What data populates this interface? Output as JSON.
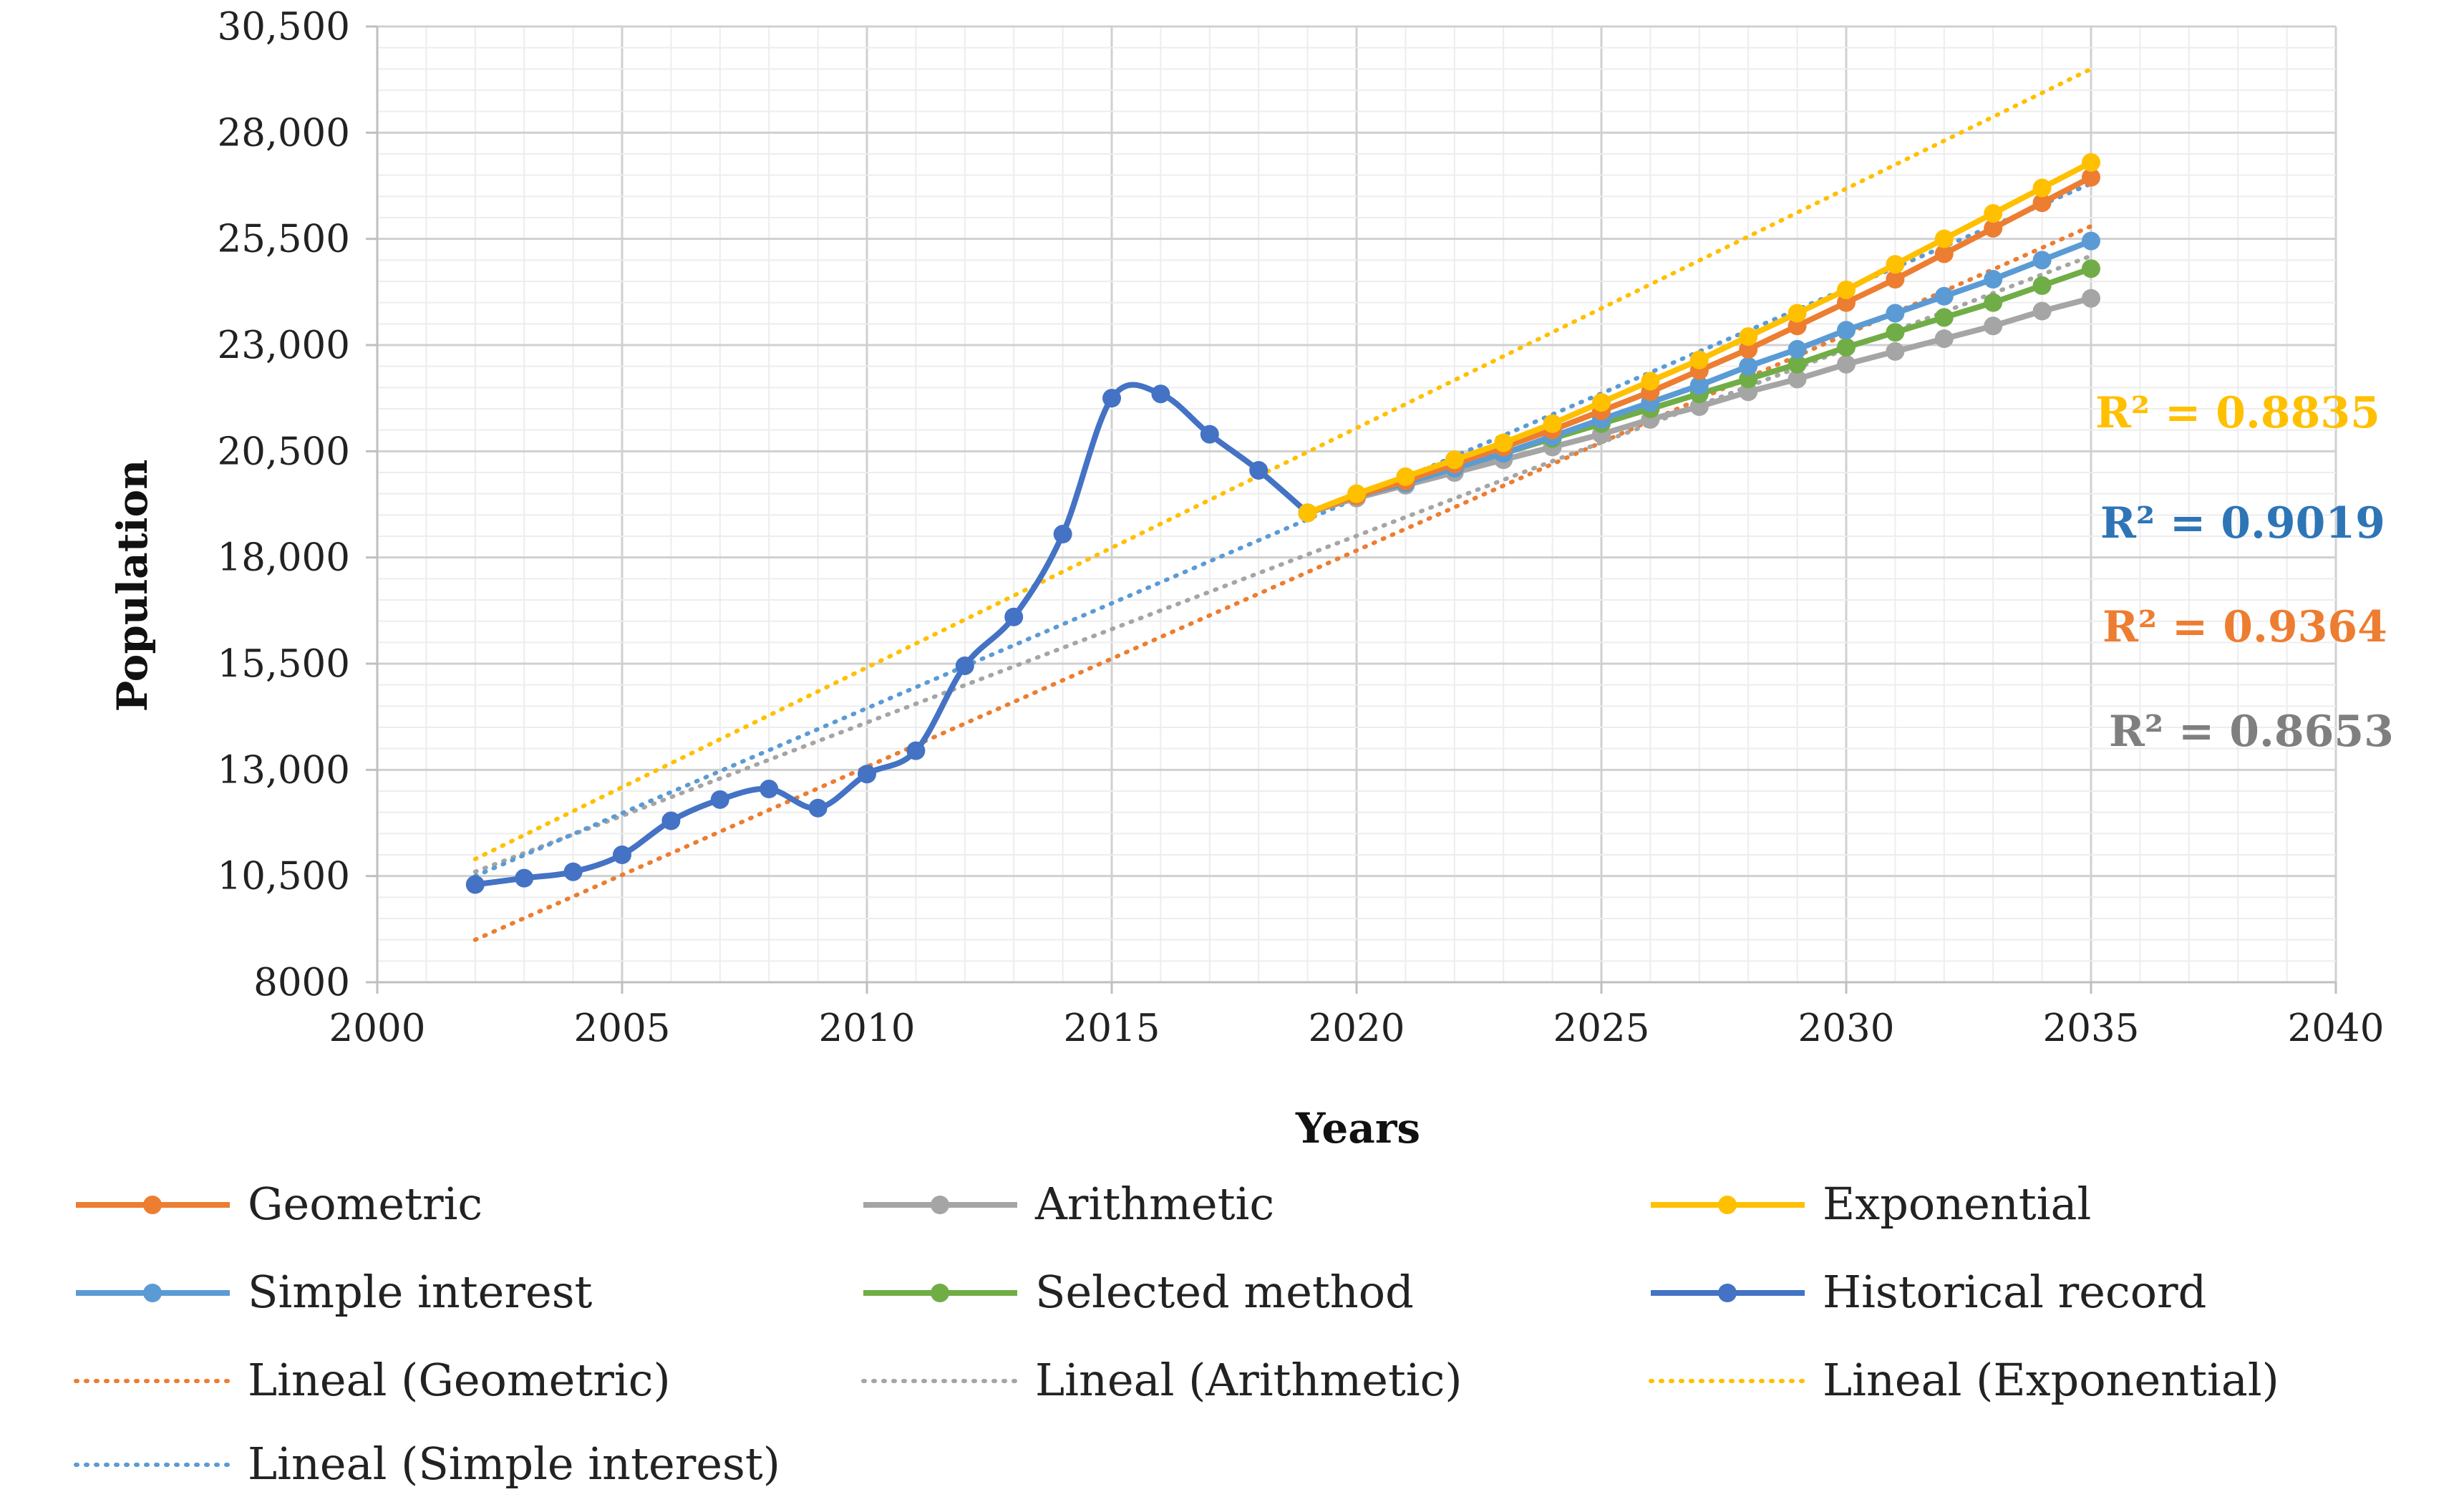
{
  "chart_data": {
    "type": "line",
    "title": "",
    "xlabel": "Years",
    "ylabel": "Population",
    "xlim": [
      2000,
      2040
    ],
    "ylim": [
      8000,
      30500
    ],
    "x_ticks": [
      2000,
      2005,
      2010,
      2015,
      2020,
      2025,
      2030,
      2035,
      2040
    ],
    "y_ticks": [
      8000,
      10500,
      13000,
      15500,
      18000,
      20500,
      23000,
      25500,
      28000,
      30500
    ],
    "y_tick_labels": [
      "8000",
      "10,500",
      "13,000",
      "15,500",
      "18,000",
      "20,500",
      "23,000",
      "25,500",
      "28,000",
      "30,500"
    ],
    "grid": true,
    "legend_position": "bottom",
    "series": [
      {
        "name": "Historical record",
        "style": "line-marker",
        "color": "#4472c4",
        "smooth": true,
        "x": [
          2002,
          2003,
          2004,
          2005,
          2006,
          2007,
          2008,
          2009,
          2010,
          2011,
          2012,
          2013,
          2014,
          2015,
          2016,
          2017,
          2018,
          2019
        ],
        "y": [
          10300,
          10450,
          10600,
          11000,
          11800,
          12300,
          12550,
          12100,
          12900,
          13450,
          15450,
          16600,
          18550,
          21750,
          21850,
          20900,
          20050,
          19050
        ]
      },
      {
        "name": "Arithmetic",
        "style": "line-marker",
        "color": "#a5a5a5",
        "x": [
          2019,
          2020,
          2021,
          2022,
          2023,
          2024,
          2025,
          2026,
          2027,
          2028,
          2029,
          2030,
          2031,
          2032,
          2033,
          2034,
          2035
        ],
        "y": [
          19050,
          19400,
          19700,
          20000,
          20300,
          20600,
          20900,
          21250,
          21550,
          21900,
          22200,
          22550,
          22850,
          23150,
          23450,
          23800,
          24100
        ]
      },
      {
        "name": "Selected method",
        "style": "line-marker",
        "color": "#70ad47",
        "x": [
          2019,
          2020,
          2021,
          2022,
          2023,
          2024,
          2025,
          2026,
          2027,
          2028,
          2029,
          2030,
          2031,
          2032,
          2033,
          2034,
          2035
        ],
        "y": [
          19050,
          19450,
          19800,
          20100,
          20450,
          20800,
          21150,
          21500,
          21850,
          22200,
          22550,
          22950,
          23300,
          23650,
          24000,
          24400,
          24800
        ]
      },
      {
        "name": "Simple interest",
        "style": "line-marker",
        "color": "#5b9bd5",
        "x": [
          2019,
          2020,
          2021,
          2022,
          2023,
          2024,
          2025,
          2026,
          2027,
          2028,
          2029,
          2030,
          2031,
          2032,
          2033,
          2034,
          2035
        ],
        "y": [
          19050,
          19450,
          19750,
          20100,
          20450,
          20850,
          21250,
          21650,
          22050,
          22500,
          22900,
          23350,
          23750,
          24150,
          24550,
          25000,
          25450
        ]
      },
      {
        "name": "Geometric",
        "style": "line-marker",
        "color": "#ed7d31",
        "x": [
          2019,
          2020,
          2021,
          2022,
          2023,
          2024,
          2025,
          2026,
          2027,
          2028,
          2029,
          2030,
          2031,
          2032,
          2033,
          2034,
          2035
        ],
        "y": [
          19050,
          19450,
          19800,
          20200,
          20600,
          21000,
          21450,
          21900,
          22400,
          22900,
          23450,
          24000,
          24550,
          25150,
          25750,
          26350,
          26950
        ]
      },
      {
        "name": "Exponential",
        "style": "line-marker",
        "color": "#ffc000",
        "x": [
          2019,
          2020,
          2021,
          2022,
          2023,
          2024,
          2025,
          2026,
          2027,
          2028,
          2029,
          2030,
          2031,
          2032,
          2033,
          2034,
          2035
        ],
        "y": [
          19050,
          19500,
          19900,
          20300,
          20700,
          21150,
          21650,
          22150,
          22650,
          23200,
          23750,
          24300,
          24900,
          25500,
          26100,
          26700,
          27300
        ]
      },
      {
        "name": "Lineal (Geometric)",
        "style": "dotted",
        "color": "#ed7d31",
        "x": [
          2002,
          2035
        ],
        "y": [
          9000,
          25800
        ]
      },
      {
        "name": "Lineal (Arithmetic)",
        "style": "dotted",
        "color": "#a5a5a5",
        "x": [
          2002,
          2035
        ],
        "y": [
          10600,
          25100
        ]
      },
      {
        "name": "Lineal (Exponential)",
        "style": "dotted",
        "color": "#ffc000",
        "x": [
          2002,
          2035
        ],
        "y": [
          10900,
          29500
        ]
      },
      {
        "name": "Lineal (Simple interest)",
        "style": "dotted",
        "color": "#5b9bd5",
        "x": [
          2002,
          2035
        ],
        "y": [
          10500,
          26800
        ]
      }
    ],
    "annotations": [
      {
        "text": "R² = 0.8835",
        "color": "#ffc000"
      },
      {
        "text": "R² = 0.9019",
        "color": "#2e75b6"
      },
      {
        "text": "R² = 0.9364",
        "color": "#ed7d31"
      },
      {
        "text": "R² = 0.8653",
        "color": "#7f7f7f"
      }
    ],
    "legend": [
      {
        "label": "Geometric",
        "style": "line-marker",
        "color": "#ed7d31"
      },
      {
        "label": "Arithmetic",
        "style": "line-marker",
        "color": "#a5a5a5"
      },
      {
        "label": "Exponential",
        "style": "line-marker",
        "color": "#ffc000"
      },
      {
        "label": "Simple interest",
        "style": "line-marker",
        "color": "#5b9bd5"
      },
      {
        "label": "Selected method",
        "style": "line-marker",
        "color": "#70ad47"
      },
      {
        "label": "Historical record",
        "style": "line-marker",
        "color": "#4472c4"
      },
      {
        "label": "Lineal (Geometric)",
        "style": "dotted",
        "color": "#ed7d31"
      },
      {
        "label": "Lineal (Arithmetic)",
        "style": "dotted",
        "color": "#a5a5a5"
      },
      {
        "label": "Lineal (Exponential)",
        "style": "dotted",
        "color": "#ffc000"
      },
      {
        "label": "Lineal (Simple interest)",
        "style": "dotted",
        "color": "#5b9bd5"
      }
    ]
  }
}
